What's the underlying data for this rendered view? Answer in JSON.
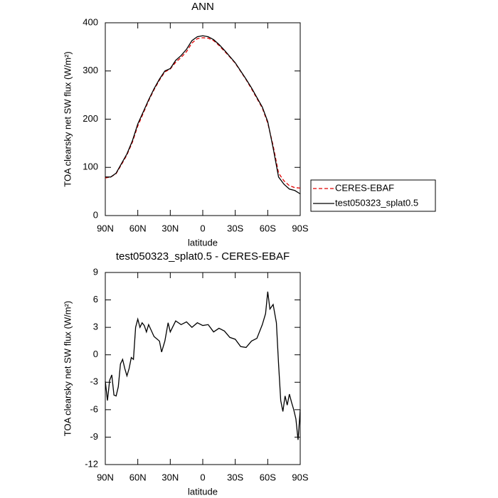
{
  "chart_data": [
    {
      "type": "line",
      "title": "ANN",
      "xlabel": "latitude",
      "ylabel": "TOA clearsky net SW flux (W/m²)",
      "x": [
        90,
        85,
        80,
        75,
        70,
        65,
        60,
        55,
        50,
        45,
        40,
        35,
        30,
        25,
        20,
        15,
        10,
        5,
        0,
        -5,
        -10,
        -15,
        -20,
        -25,
        -30,
        -35,
        -40,
        -45,
        -50,
        -55,
        -60,
        -65,
        -70,
        -75,
        -80,
        -85,
        -90
      ],
      "series": [
        {
          "name": "CERES-EBAF",
          "color": "#e00000",
          "dash": true,
          "values": [
            78,
            80,
            87,
            106,
            126,
            152,
            186,
            212,
            238,
            261,
            281,
            298,
            304,
            318,
            328,
            340,
            358,
            367,
            369,
            368,
            363,
            353,
            341,
            329,
            316,
            299,
            282,
            263,
            243,
            223,
            192,
            145,
            88,
            72,
            62,
            58,
            57
          ]
        },
        {
          "name": "test050323_splat0.5",
          "color": "#000000",
          "dash": false,
          "values": [
            80,
            80,
            88,
            108,
            128,
            155,
            190,
            215,
            240,
            263,
            283,
            300,
            305,
            322,
            332,
            345,
            363,
            371,
            373,
            371,
            365,
            355,
            343,
            330,
            317,
            300,
            283,
            265,
            245,
            225,
            195,
            140,
            80,
            65,
            55,
            52,
            45
          ]
        }
      ],
      "xlim": [
        90,
        -90
      ],
      "xticks": [
        {
          "value": 90,
          "label": "90N"
        },
        {
          "value": 60,
          "label": "60N"
        },
        {
          "value": 30,
          "label": "30N"
        },
        0,
        {
          "value": -30,
          "label": "30S"
        },
        {
          "value": -60,
          "label": "60S"
        },
        {
          "value": -90,
          "label": "90S"
        }
      ],
      "ylim": [
        0,
        400
      ],
      "yticks": [
        0,
        100,
        200,
        300,
        400
      ],
      "legend": "outside-right"
    },
    {
      "type": "line",
      "title": "test050323_splat0.5 - CERES-EBAF",
      "xlabel": "latitude",
      "ylabel": "TOA clearsky net SW flux (W/m²)",
      "x": [
        90,
        88,
        86,
        84,
        82,
        80,
        78,
        76,
        74,
        72,
        70,
        68,
        66,
        64,
        62,
        60,
        58,
        56,
        54,
        52,
        50,
        45,
        40,
        38,
        35,
        32,
        30,
        25,
        20,
        15,
        10,
        5,
        0,
        -5,
        -10,
        -15,
        -20,
        -25,
        -30,
        -35,
        -40,
        -45,
        -50,
        -55,
        -58,
        -60,
        -62,
        -65,
        -68,
        -70,
        -72,
        -74,
        -76,
        -78,
        -80,
        -82,
        -84,
        -86,
        -88,
        -90
      ],
      "values": [
        -2.9,
        -5,
        -2.8,
        -2.2,
        -4.4,
        -4.5,
        -3.5,
        -1.0,
        -0.5,
        -1.5,
        -2.3,
        -1.5,
        -0.3,
        -0.5,
        3.0,
        3.9,
        3.0,
        3.5,
        3.2,
        2.5,
        3.3,
        2.0,
        1.5,
        0.3,
        1.5,
        3.5,
        2.5,
        3.7,
        3.3,
        3.6,
        3.0,
        3.5,
        3.2,
        3.3,
        2.5,
        2.9,
        2.6,
        1.9,
        1.7,
        0.9,
        0.8,
        1.5,
        1.8,
        3.3,
        4.5,
        6.9,
        5.0,
        5.5,
        3.5,
        -1.0,
        -5.0,
        -6.2,
        -4.5,
        -5.5,
        -4.3,
        -5.2,
        -6.0,
        -7.0,
        -9.3,
        -6.0
      ],
      "color": "#000000",
      "xlim": [
        90,
        -90
      ],
      "xticks": [
        {
          "value": 90,
          "label": "90N"
        },
        {
          "value": 60,
          "label": "60N"
        },
        {
          "value": 30,
          "label": "30N"
        },
        0,
        {
          "value": -30,
          "label": "30S"
        },
        {
          "value": -60,
          "label": "60S"
        },
        {
          "value": -90,
          "label": "90S"
        }
      ],
      "ylim": [
        -12,
        9
      ],
      "yticks": [
        -12,
        -9,
        -6,
        -3,
        0,
        3,
        6,
        9
      ]
    }
  ]
}
